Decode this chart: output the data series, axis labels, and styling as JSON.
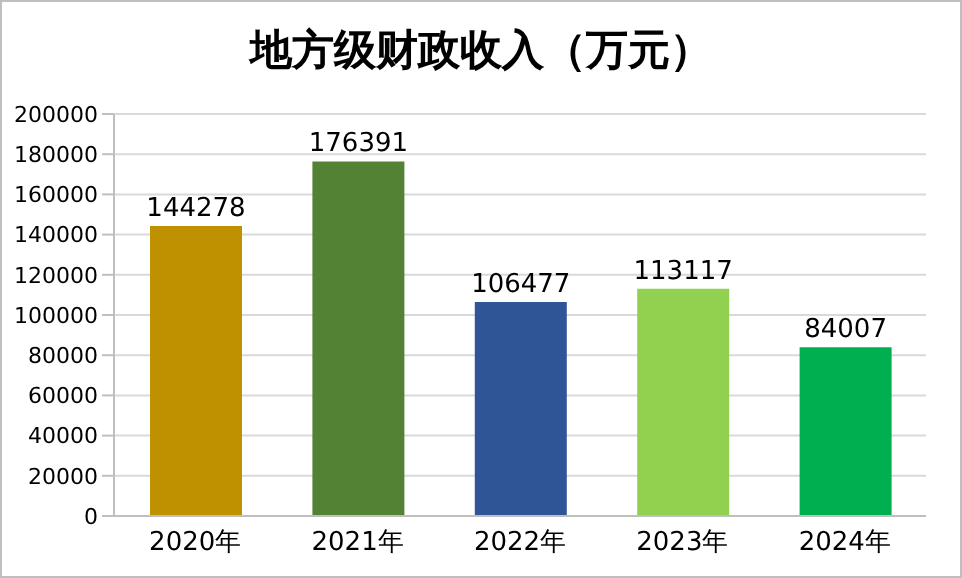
{
  "chart_data": {
    "type": "bar",
    "title": "地方级财政收入（万元）",
    "categories": [
      "2020年",
      "2021年",
      "2022年",
      "2023年",
      "2024年"
    ],
    "values": [
      144278,
      176391,
      106477,
      113117,
      84007
    ],
    "colors": [
      "#bf9000",
      "#548235",
      "#2f5597",
      "#92d050",
      "#00b050"
    ],
    "ylim": [
      0,
      200000
    ],
    "yticks": [
      0,
      20000,
      40000,
      60000,
      80000,
      100000,
      120000,
      140000,
      160000,
      180000,
      200000
    ],
    "grid": "y",
    "data_labels": true
  }
}
